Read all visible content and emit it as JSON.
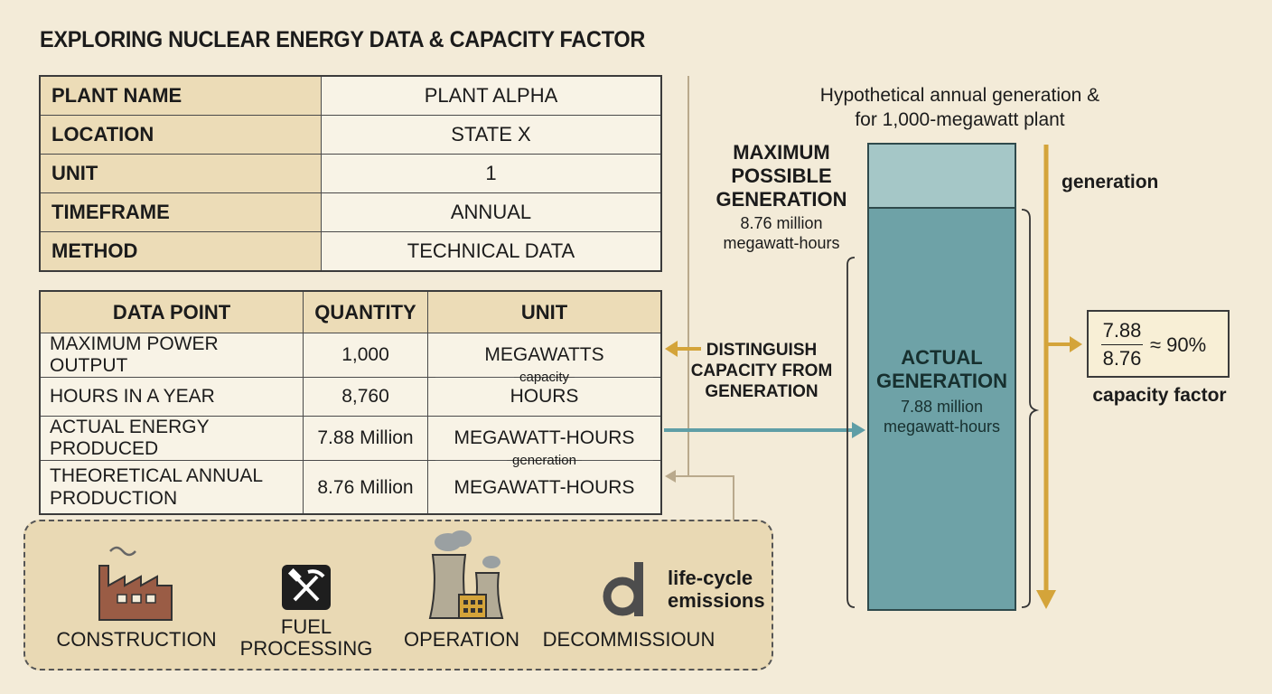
{
  "title": "EXPLORING NUCLEAR ENERGY DATA & CAPACITY FACTOR",
  "info_table": [
    {
      "key": "PLANT NAME",
      "value": "PLANT ALPHA"
    },
    {
      "key": "LOCATION",
      "value": "STATE X"
    },
    {
      "key": "UNIT",
      "value": "1"
    },
    {
      "key": "TIMEFRAME",
      "value": "ANNUAL"
    },
    {
      "key": "METHOD",
      "value": "TECHNICAL DATA"
    }
  ],
  "data_table": {
    "headers": [
      "DATA POINT",
      "QUANTITY",
      "UNIT"
    ],
    "rows": [
      {
        "point": "MAXIMUM POWER OUTPUT",
        "quantity": "1,000",
        "unit": "MEGAWATTS",
        "note": "capacity"
      },
      {
        "point": "HOURS IN A YEAR",
        "quantity": "8,760",
        "unit": "HOURS"
      },
      {
        "point": "ACTUAL ENERGY PRODUCED",
        "quantity": "7.88 Million",
        "unit": "MEGAWATT-HOURS",
        "note": "generation"
      },
      {
        "point": "THEORETICAL ANNUAL PRODUCTION",
        "quantity": "8.76 Million",
        "unit": "MEGAWATT-HOURS"
      }
    ]
  },
  "diagram": {
    "caption": "Hypothetical annual generation & for 1,000-megawatt plant",
    "max_label": "MAXIMUM POSSIBLE GENERATION",
    "max_value": "8.76 million megawatt-hours",
    "actual_label": "ACTUAL GENERATION",
    "actual_value": "7.88 million megawatt-hours",
    "distinguish": "DISTINGUISH CAPACITY FROM GENERATION",
    "generation_label": "generation",
    "fraction_num": "7.88",
    "fraction_den": "8.76",
    "approx": "≈ 90%",
    "capacity_factor_label": "capacity factor"
  },
  "lifecycle": {
    "steps": [
      "CONSTRUCTION",
      "FUEL PROCESSING",
      "OPERATION",
      "DECOMMISSIOUN"
    ],
    "label": "life-cycle emissions",
    "icons": [
      "factory-icon",
      "hammer-pick-icon",
      "cooling-tower-icon",
      "decommission-d-icon"
    ]
  },
  "colors": {
    "background": "#f3ebd8",
    "header_fill": "#ecdcb7",
    "bar_max": "#a5c7c7",
    "bar_actual": "#6ea2a7",
    "arrow_gold": "#d4a43a",
    "arrow_teal": "#5f9ea6",
    "factory": "#9a5c45"
  }
}
